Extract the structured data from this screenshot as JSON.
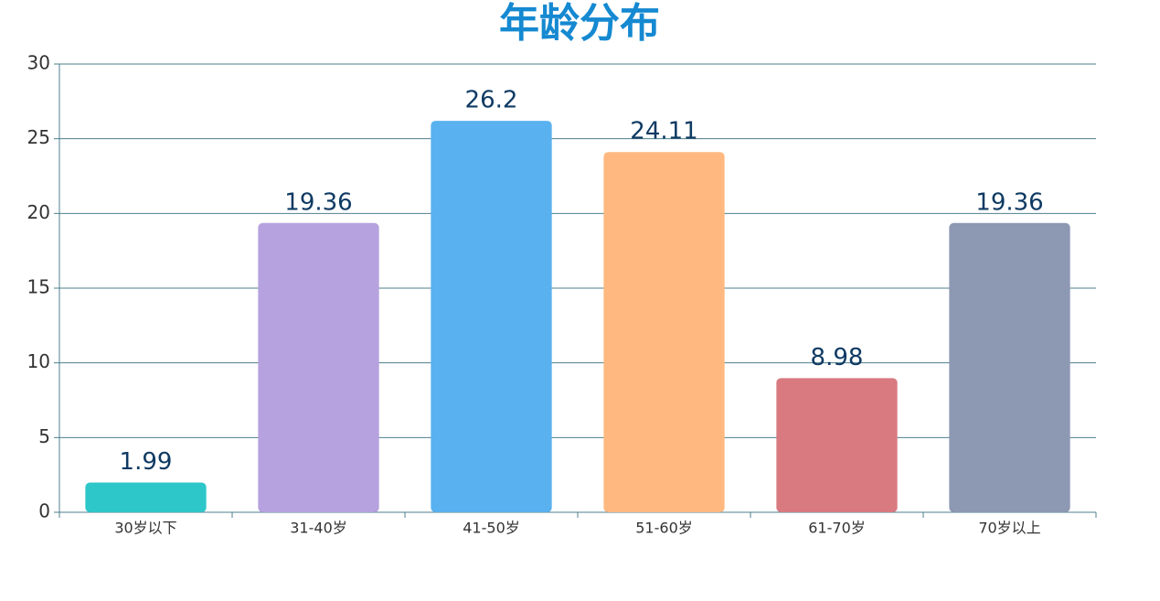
{
  "chart_data": {
    "type": "bar",
    "title": "年龄分布",
    "categories": [
      "30岁以下",
      "31-40岁",
      "41-50岁",
      "51-60岁",
      "61-70岁",
      "70岁以上"
    ],
    "values": [
      1.99,
      19.36,
      26.2,
      24.11,
      8.98,
      19.36
    ],
    "colors": [
      "#2ec7c9",
      "#b6a2de",
      "#5ab1ef",
      "#ffb980",
      "#d87a80",
      "#8d98b3"
    ],
    "ylim": [
      0,
      30
    ],
    "yticks": [
      0,
      5,
      10,
      15,
      20,
      25,
      30
    ],
    "grid": true
  }
}
